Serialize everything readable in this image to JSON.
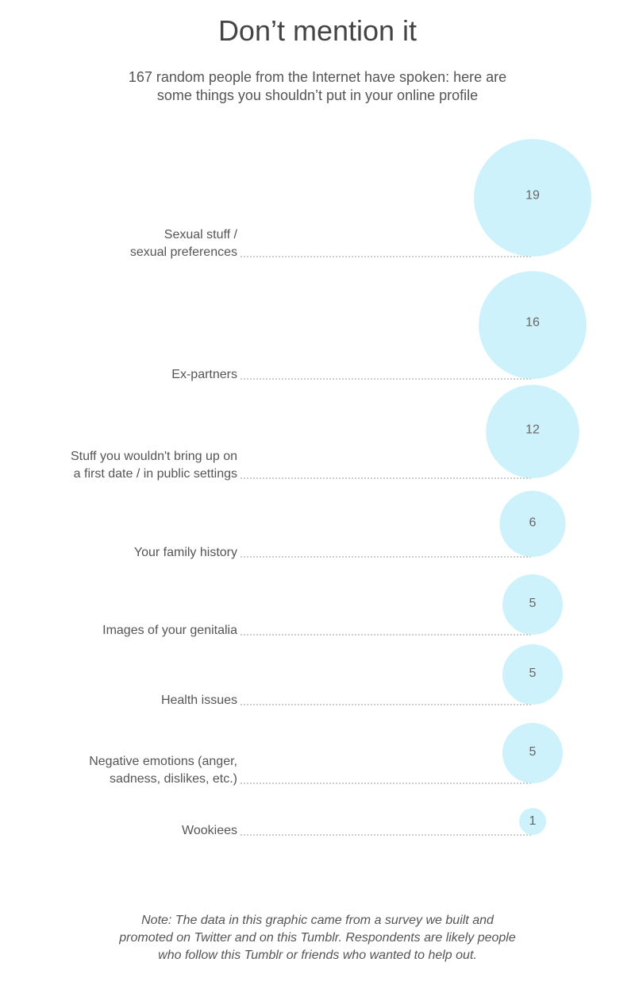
{
  "title": "Don’t mention it",
  "subtitle": [
    "167 random people from the Internet have spoken: here are",
    "some things you shouldn’t put in your online profile"
  ],
  "note": [
    "Note: The data in this graphic came from a survey we built and",
    "promoted on Twitter and on this Tumblr. Respondents are likely people",
    "who follow this Tumblr or friends who wanted to help out."
  ],
  "colors": {
    "bubble": "#cdf2fc",
    "text": "#555555",
    "leader": "#999999"
  },
  "chart_data": {
    "type": "bubble",
    "title": "Don’t mention it",
    "categories": [
      [
        "Sexual stuff /",
        "sexual preferences"
      ],
      [
        "Ex-partners"
      ],
      [
        "Stuff you wouldn't bring up on",
        "a first date / in public settings"
      ],
      [
        "Your family history"
      ],
      [
        "Images of your genitalia"
      ],
      [
        "Health issues"
      ],
      [
        "Negative emotions (anger,",
        "sadness, dislikes, etc.)"
      ],
      [
        "Wookiees"
      ]
    ],
    "values": [
      19,
      16,
      12,
      6,
      5,
      5,
      5,
      1
    ],
    "grid": false
  }
}
